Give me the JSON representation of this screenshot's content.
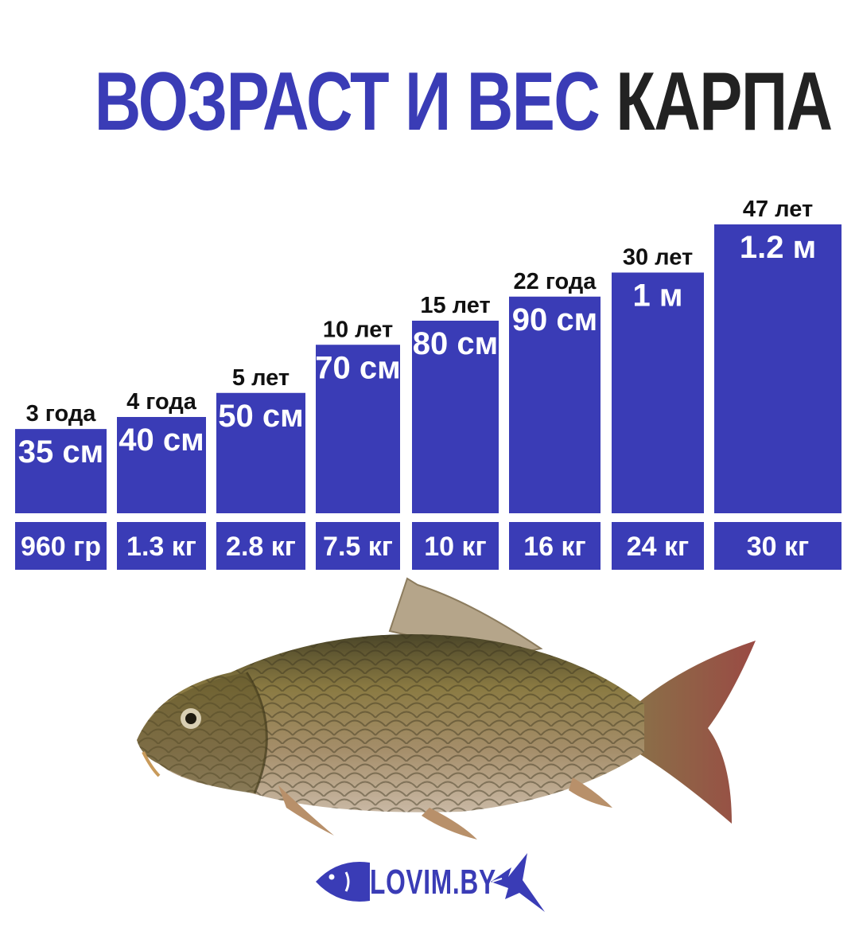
{
  "title": {
    "part1": "ВОЗРАСТ И ВЕС",
    "part2": "КАРПА"
  },
  "colors": {
    "bar": "#3a3cb6",
    "title_accent": "#3a3cb6",
    "title_dark": "#222222"
  },
  "chart_data": {
    "type": "bar",
    "categories": [
      "3 года",
      "4 года",
      "5 лет",
      "10 лет",
      "15 лет",
      "22 года",
      "30 лет",
      "47  лет"
    ],
    "length_labels": [
      "35 см",
      "40 см",
      "50 см",
      "70 см",
      "80 см",
      "90 см",
      "1 м",
      "1.2 м"
    ],
    "length_cm": [
      35,
      40,
      50,
      70,
      80,
      90,
      100,
      120
    ],
    "weight_labels": [
      "960 гр",
      "1.3 кг",
      "2.8 кг",
      "7.5 кг",
      "10 кг",
      "16 кг",
      "24 кг",
      "30 кг"
    ],
    "weight_kg": [
      0.96,
      1.3,
      2.8,
      7.5,
      10,
      16,
      24,
      30
    ],
    "title": "ВОЗРАСТ И ВЕС КАРПА",
    "xlabel": "",
    "ylabel": ""
  },
  "image": {
    "subject_icon": "carp-fish-icon"
  },
  "logo": {
    "text": "LOVIM.BY",
    "icon": "fish-logo-icon"
  }
}
